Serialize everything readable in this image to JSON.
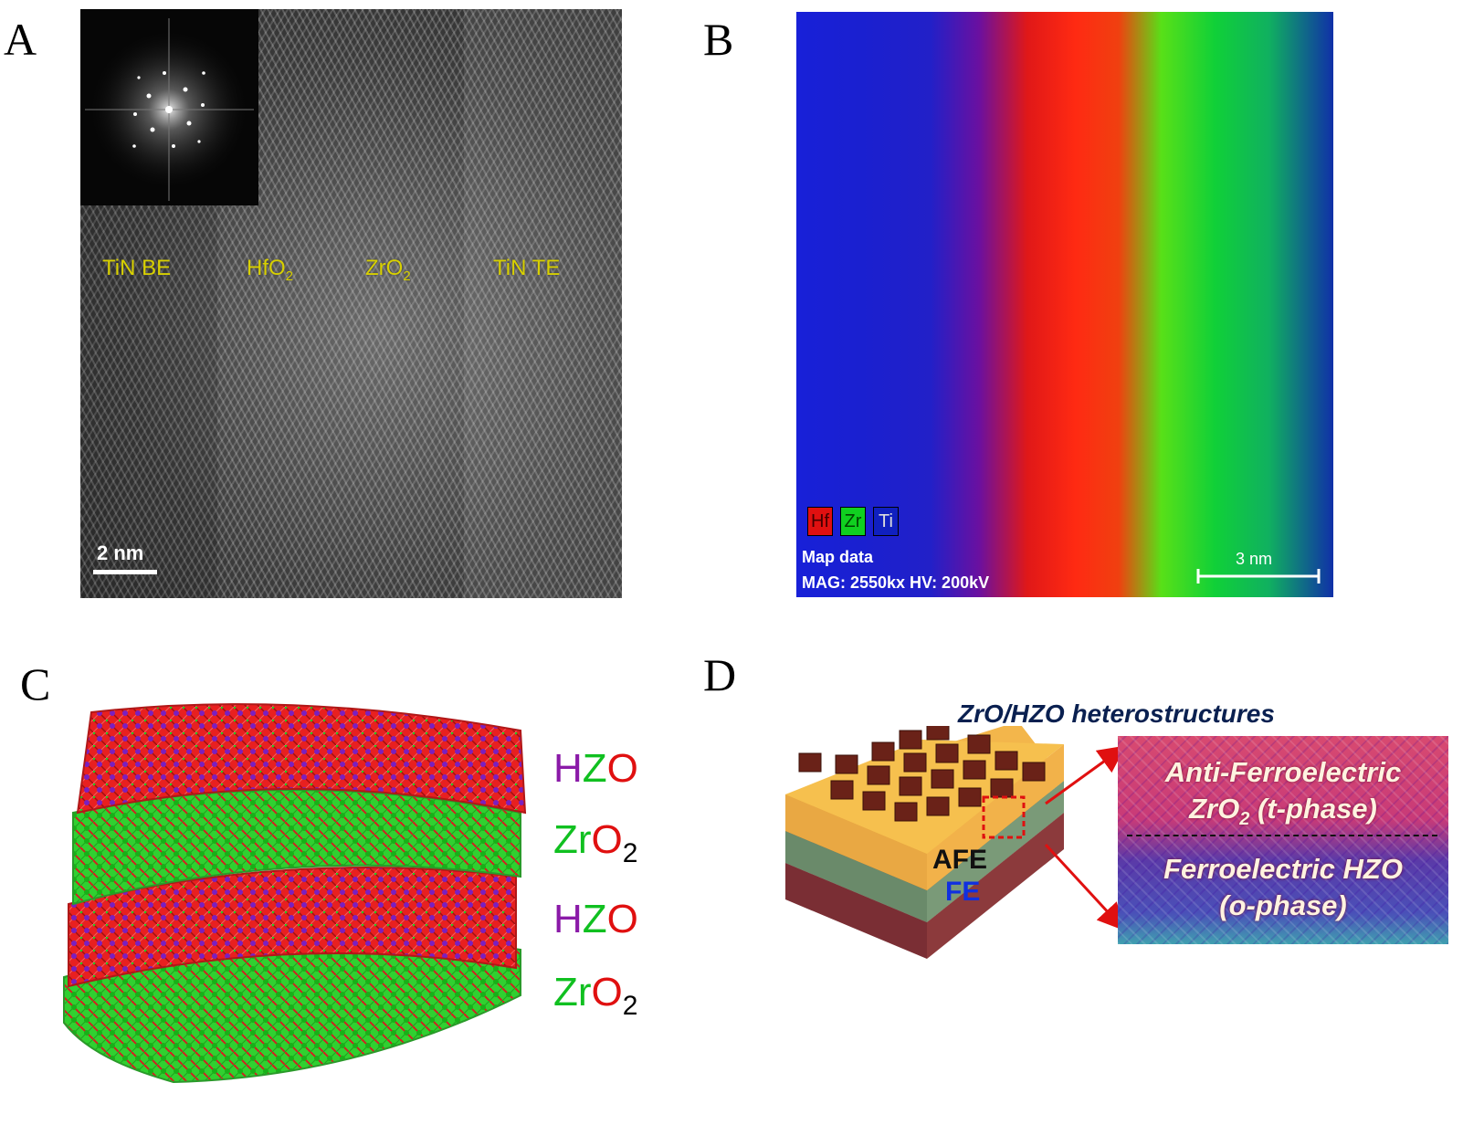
{
  "panels": {
    "A": {
      "label": "A",
      "regions": [
        "TiN BE",
        "HfO",
        "ZrO",
        "TiN TE"
      ],
      "region_subscripts": [
        "",
        "2",
        "2",
        ""
      ],
      "scale_bar": "2 nm"
    },
    "B": {
      "label": "B",
      "legend": [
        {
          "symbol": "Hf",
          "color": "#e01010"
        },
        {
          "symbol": "Zr",
          "color": "#10d020"
        },
        {
          "symbol": "Ti",
          "color": "#1020c0"
        }
      ],
      "map_data": "Map data",
      "mag_info": "MAG: 2550kx  HV: 200kV",
      "scale_bar": "3 nm"
    },
    "C": {
      "label": "C",
      "layers": [
        {
          "parts": [
            "H",
            "Z",
            "O"
          ],
          "colors": [
            "#8a1aa8",
            "#10c020",
            "#e01010"
          ],
          "sub": ""
        },
        {
          "parts": [
            "Zr",
            "O"
          ],
          "colors": [
            "#10c020",
            "#e01010"
          ],
          "sub": "2"
        },
        {
          "parts": [
            "H",
            "Z",
            "O"
          ],
          "colors": [
            "#8a1aa8",
            "#10c020",
            "#e01010"
          ],
          "sub": ""
        },
        {
          "parts": [
            "Zr",
            "O"
          ],
          "colors": [
            "#10c020",
            "#e01010"
          ],
          "sub": "2"
        }
      ]
    },
    "D": {
      "label": "D",
      "title": "ZrO/HZO heterostructures",
      "afe_label": "AFE",
      "fe_label": "FE",
      "box_lines": [
        "Anti-Ferroelectric",
        "ZrO",
        " (t-phase)",
        "Ferroelectric HZO",
        "(o-phase)"
      ],
      "box_sub": "2"
    }
  }
}
